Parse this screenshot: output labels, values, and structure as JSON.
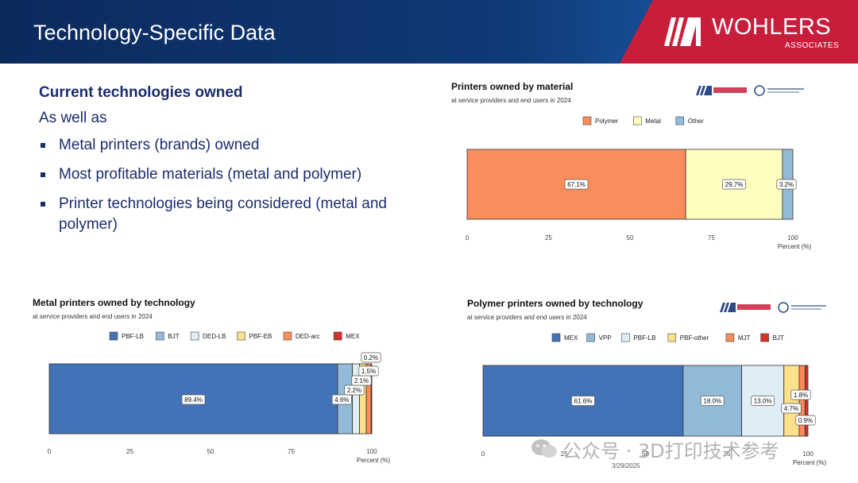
{
  "header": {
    "title": "Technology-Specific Data",
    "brand_name": "WOHLERS",
    "brand_sub": "ASSOCIATES"
  },
  "content": {
    "heading": "Current technologies owned",
    "subheading": "As well as",
    "bullets": [
      "Metal printers (brands) owned",
      "Most profitable materials (metal and polymer)",
      "Printer technologies being considered (metal and polymer)"
    ]
  },
  "footer": {
    "date": "3/29/2025"
  },
  "watermark": "公众号 · 3D打印技术参考",
  "chart_data": [
    {
      "type": "bar",
      "orientation": "horizontal-stacked",
      "title": "Printers owned by material",
      "subtitle": "at service providers and end users in 2024",
      "xlabel": "Percent (%)",
      "xlim": [
        0,
        100
      ],
      "xticks": [
        0,
        25,
        50,
        75,
        100
      ],
      "legend_position": "top",
      "series": [
        {
          "name": "Polymer",
          "value": 67.1,
          "label": "67.1%",
          "color": "#f98c5b"
        },
        {
          "name": "Metal",
          "value": 29.7,
          "label": "29.7%",
          "color": "#ffffc0"
        },
        {
          "name": "Other",
          "value": 3.2,
          "label": "3.2%",
          "color": "#92bad9"
        }
      ]
    },
    {
      "type": "bar",
      "orientation": "horizontal-stacked",
      "title": "Metal printers owned by technology",
      "subtitle": "at service providers and end users in 2024",
      "xlabel": "Percent (%)",
      "xlim": [
        0,
        100
      ],
      "xticks": [
        0,
        25,
        50,
        75,
        100
      ],
      "legend_position": "top",
      "series": [
        {
          "name": "PBF-LB",
          "value": 89.4,
          "label": "89.4%",
          "color": "#4472b6"
        },
        {
          "name": "BJT",
          "value": 4.6,
          "label": "4.6%",
          "color": "#92bad9"
        },
        {
          "name": "DED-LB",
          "value": 2.2,
          "label": "2.2%",
          "color": "#ddeef6"
        },
        {
          "name": "PBF-EB",
          "value": 2.1,
          "label": "2.1%",
          "color": "#fde08a"
        },
        {
          "name": "DED-arc",
          "value": 1.5,
          "label": "1.5%",
          "color": "#f98c5b"
        },
        {
          "name": "MEX",
          "value": 0.2,
          "label": "0.2%",
          "color": "#d73027"
        }
      ]
    },
    {
      "type": "bar",
      "orientation": "horizontal-stacked",
      "title": "Polymer printers owned by technology",
      "subtitle": "at service providers and end users in 2024",
      "xlabel": "Percent (%)",
      "xlim": [
        0,
        100
      ],
      "xticks": [
        0,
        25,
        50,
        75,
        100
      ],
      "legend_position": "top",
      "series": [
        {
          "name": "MEX",
          "value": 61.6,
          "label": "61.6%",
          "color": "#4472b6"
        },
        {
          "name": "VPP",
          "value": 18.0,
          "label": "18.0%",
          "color": "#92bad9"
        },
        {
          "name": "PBF-LB",
          "value": 13.0,
          "label": "13.0%",
          "color": "#ddeef6"
        },
        {
          "name": "PBF-other",
          "value": 4.7,
          "label": "4.7%",
          "color": "#fde08a"
        },
        {
          "name": "MJT",
          "value": 1.8,
          "label": "1.8%",
          "color": "#f98c5b"
        },
        {
          "name": "BJT",
          "value": 0.9,
          "label": "0.9%",
          "color": "#d73027"
        }
      ]
    }
  ]
}
